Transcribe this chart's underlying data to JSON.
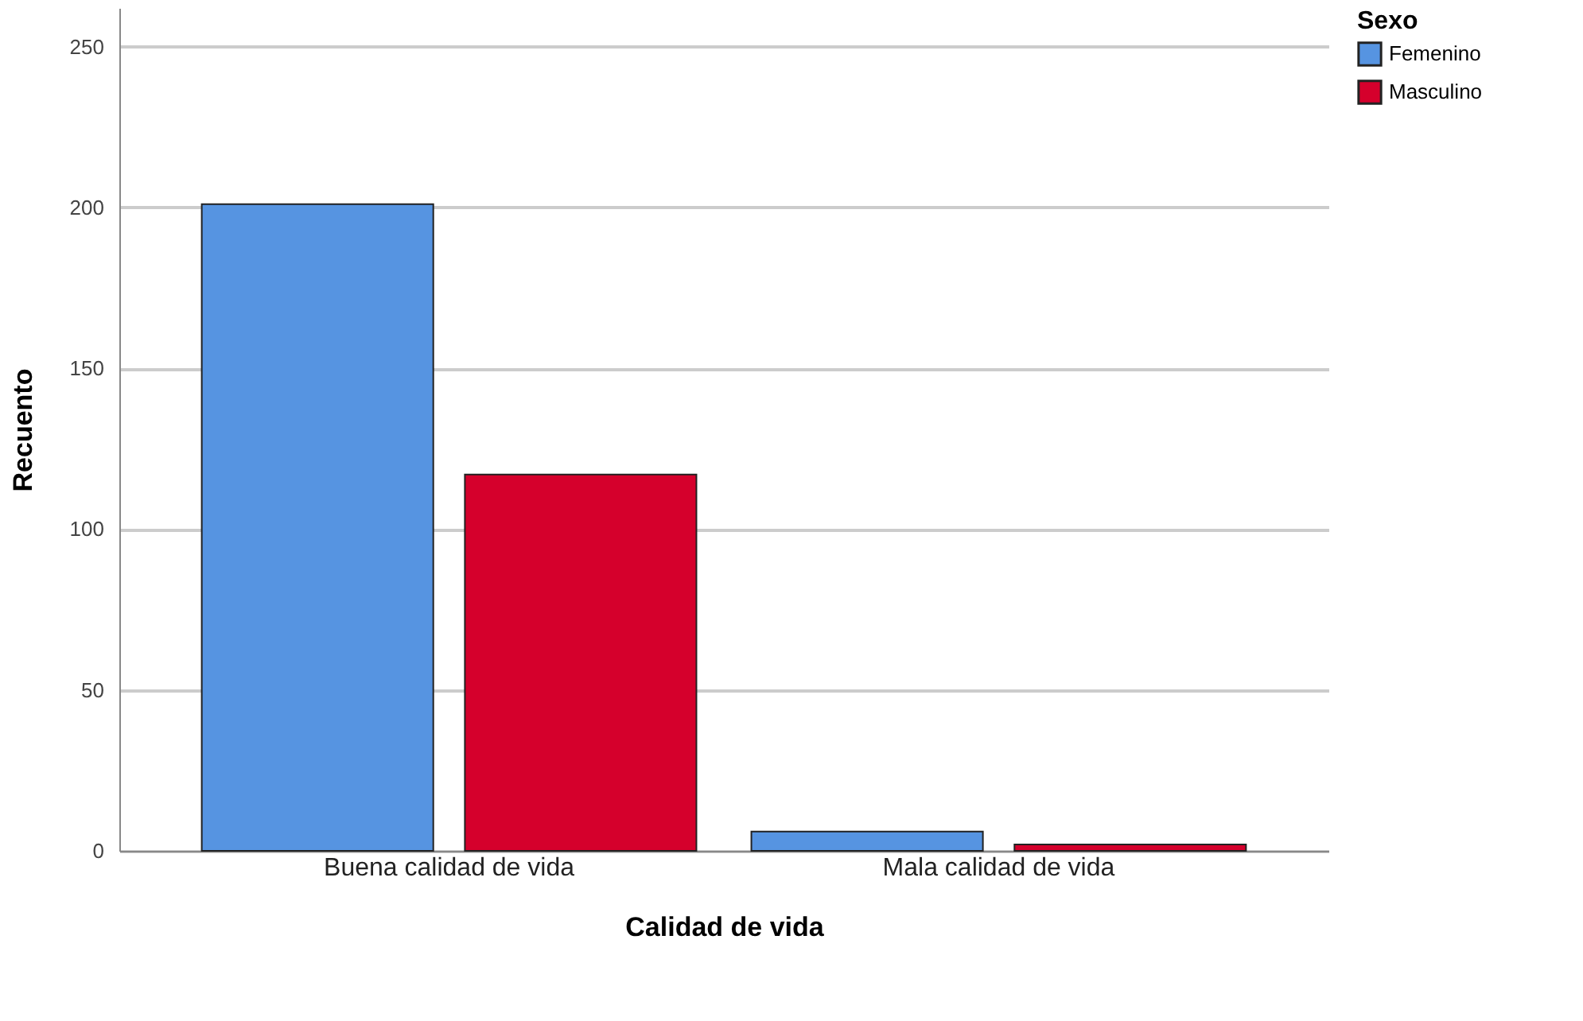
{
  "chart_data": {
    "type": "bar",
    "xlabel": "Calidad de vida",
    "ylabel": "Recuento",
    "legend_title": "Sexo",
    "categories": [
      "Buena calidad de vida",
      "Mala calidad de vida"
    ],
    "series": [
      {
        "name": "Femenino",
        "color": "#5694e1",
        "values": [
          201,
          6
        ]
      },
      {
        "name": "Masculino",
        "color": "#d5002c",
        "values": [
          117,
          2
        ]
      }
    ],
    "ylim": [
      0,
      262
    ],
    "yticks": [
      0,
      50,
      100,
      150,
      200,
      250
    ],
    "grid": "y",
    "legend": "top right"
  }
}
